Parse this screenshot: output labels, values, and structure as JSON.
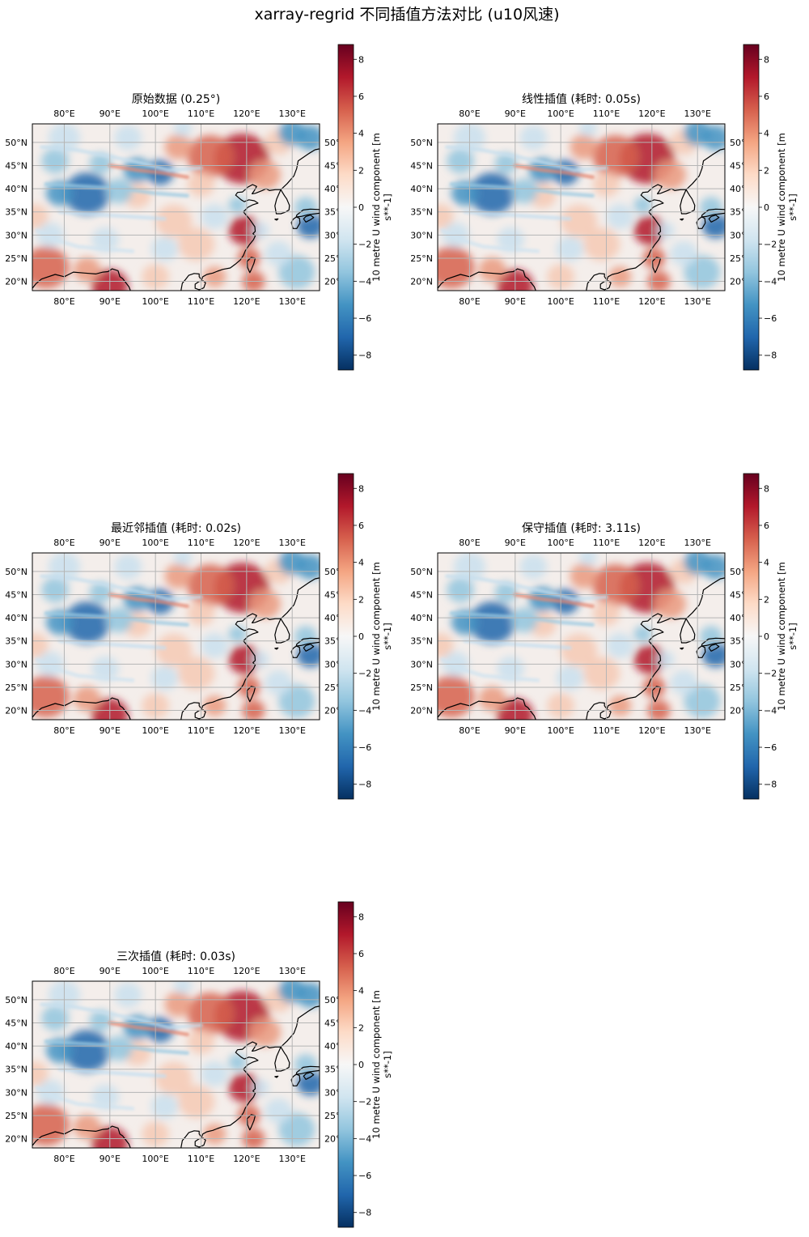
{
  "figure_title": "xarray-regrid 不同插值方法对比 (u10风速)",
  "map_data": {
    "type": "heatmap",
    "variable_label_line1": "10 metre U wind component [m",
    "variable_label_line2": "s**-1]",
    "lon_range": [
      73,
      136
    ],
    "lat_range": [
      18,
      54
    ],
    "value_range": [
      -8.8,
      8.8
    ],
    "lon_ticks": [
      "80°E",
      "90°E",
      "100°E",
      "110°E",
      "120°E",
      "130°E"
    ],
    "lat_ticks": [
      "50°N",
      "45°N",
      "40°N",
      "35°N",
      "30°N",
      "25°N",
      "20°N"
    ],
    "right_lat_ticks": [
      "50°",
      "45°",
      "40°",
      "35°",
      "30°",
      "25°",
      "20°"
    ],
    "colorbar_ticks": [
      "8",
      "6",
      "4",
      "2",
      "0",
      "−2",
      "−4",
      "−6",
      "−8"
    ],
    "colorbar_tick_values": [
      8,
      6,
      4,
      2,
      0,
      -2,
      -4,
      -6,
      -8
    ],
    "colormap": [
      "#67001f",
      "#b2182b",
      "#d6604d",
      "#f4a582",
      "#fddbc7",
      "#f7f7f7",
      "#d1e5f0",
      "#92c5de",
      "#4393c3",
      "#2166ac",
      "#053061"
    ],
    "gridline_color": "#b5b5b5",
    "panels": [
      {
        "title": "原始数据 (0.25°)"
      },
      {
        "title": "线性插值 (耗时: 0.05s)"
      },
      {
        "title": "最近邻插值 (耗时: 0.02s)"
      },
      {
        "title": "保守插值 (耗时: 3.11s)"
      },
      {
        "title": "三次插值 (耗时: 0.03s)"
      }
    ]
  }
}
